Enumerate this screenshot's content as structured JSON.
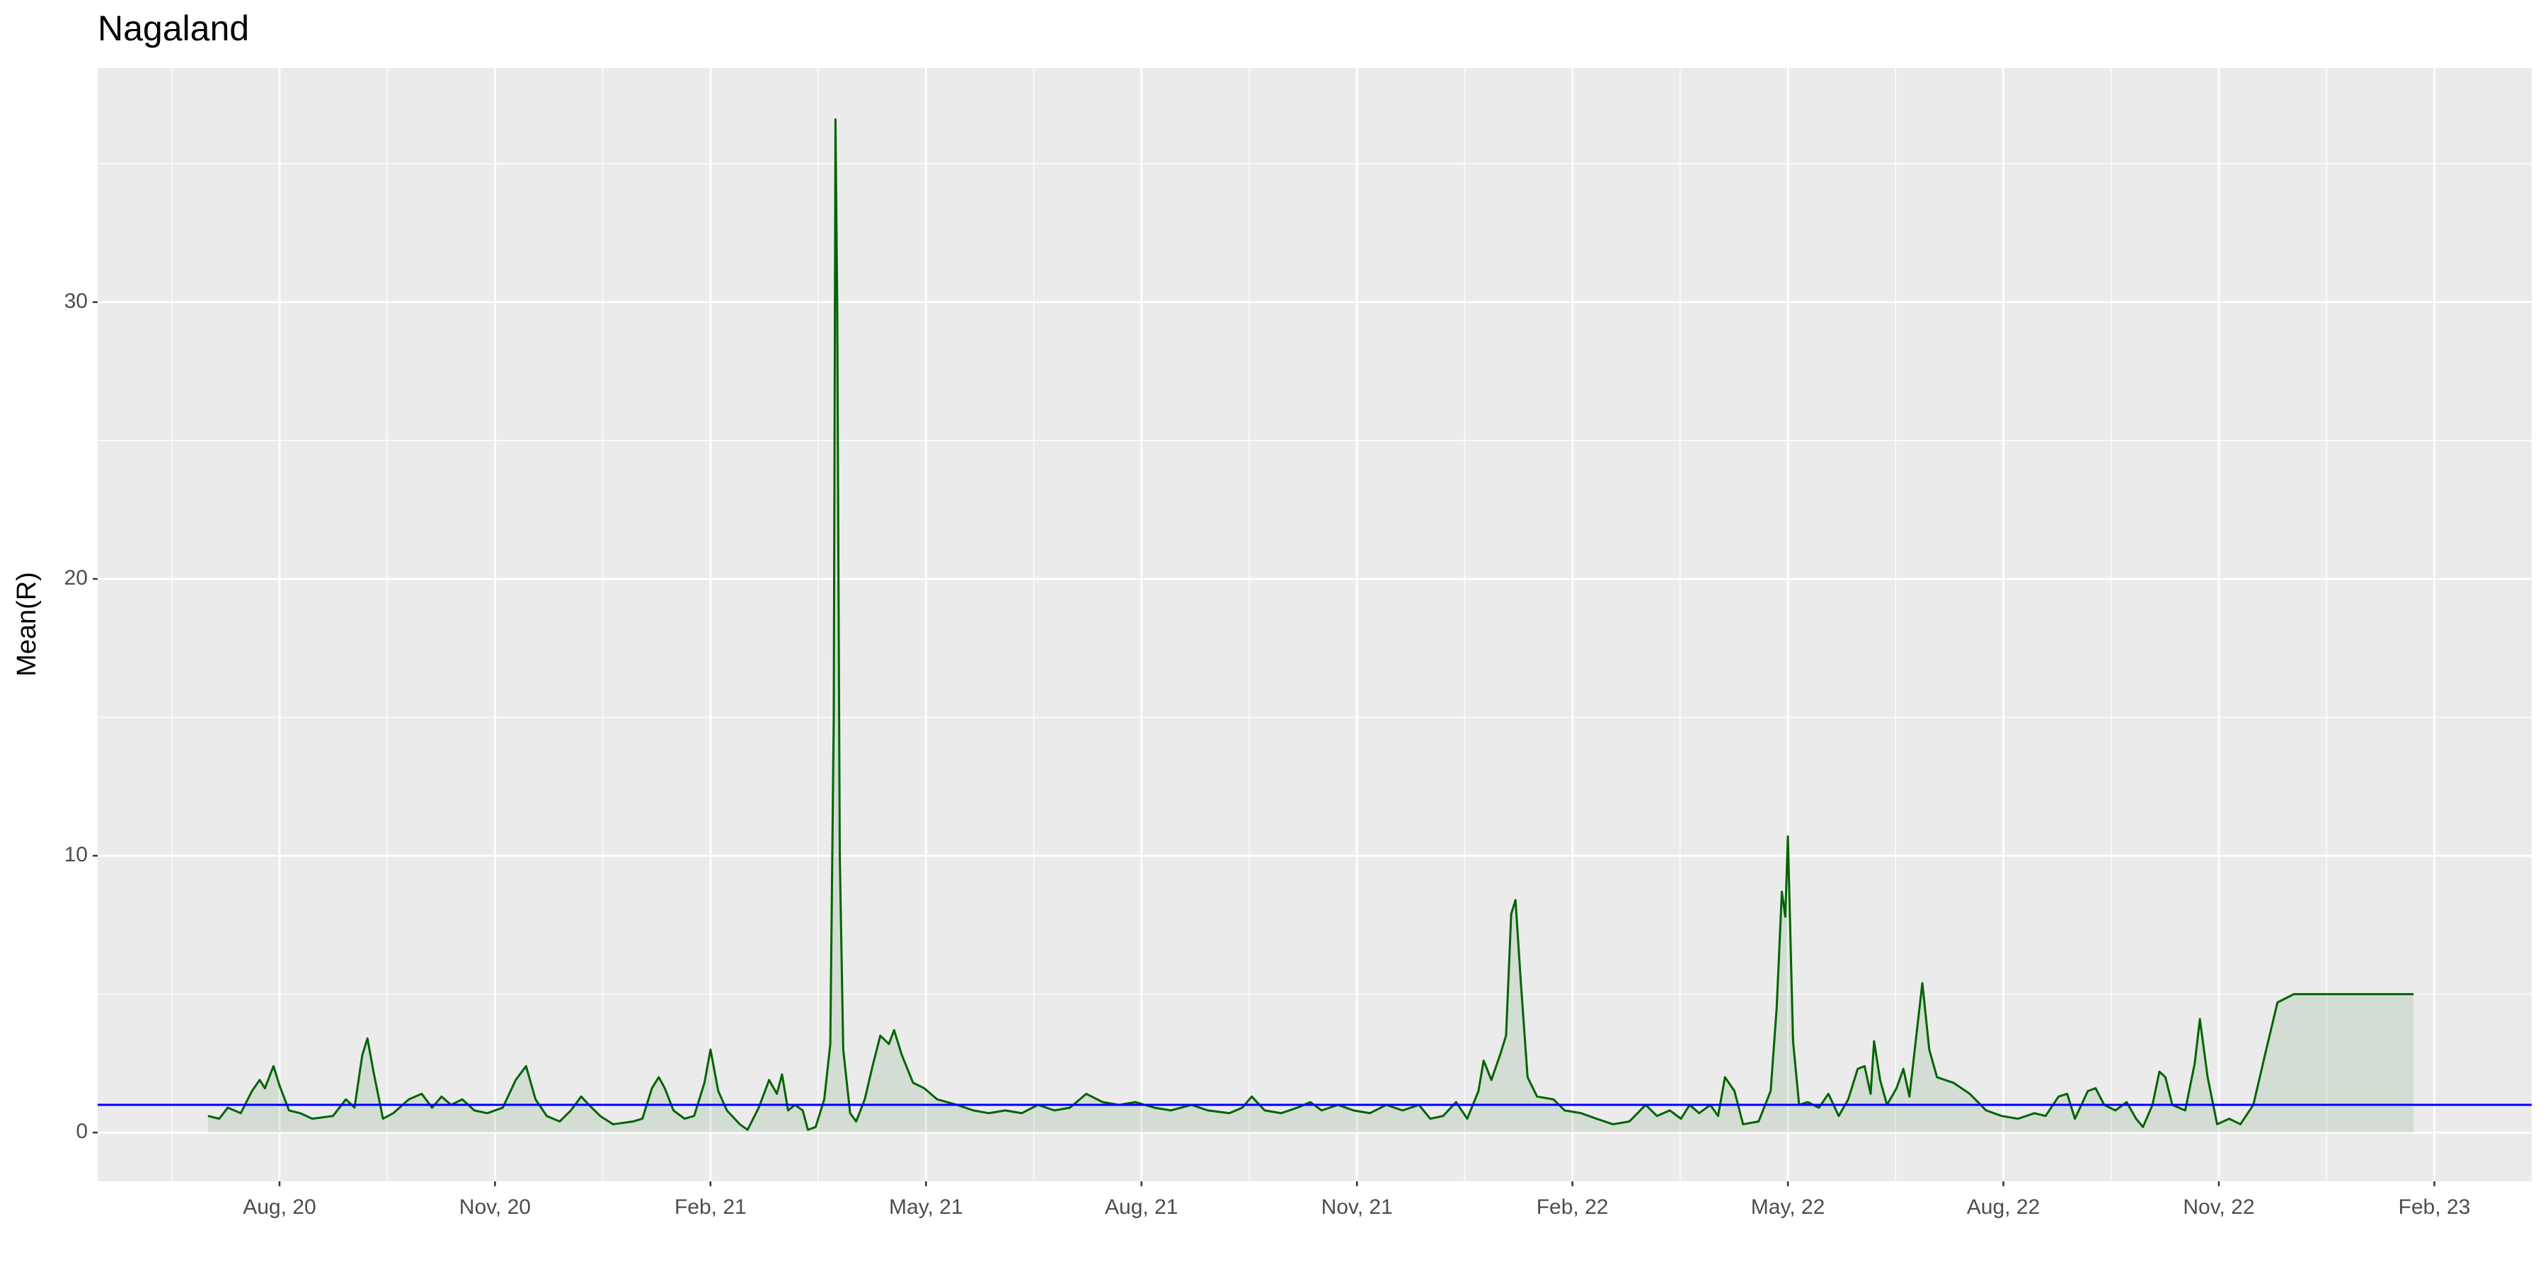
{
  "chart_data": {
    "type": "line",
    "title": "Nagaland",
    "y_label": "Mean(R)",
    "x": [
      2020.5,
      2020.513,
      2020.523,
      2020.538,
      2020.551,
      2020.56,
      2020.566,
      2020.576,
      2020.583,
      2020.594,
      2020.607,
      2020.621,
      2020.645,
      2020.66,
      2020.67,
      2020.679,
      2020.685,
      2020.692,
      2020.703,
      2020.715,
      2020.733,
      2020.748,
      2020.76,
      2020.771,
      2020.782,
      2020.795,
      2020.809,
      2020.824,
      2020.842,
      2020.857,
      2020.869,
      2020.88,
      2020.893,
      2020.908,
      2020.921,
      2020.933,
      2020.942,
      2020.955,
      2020.97,
      2020.993,
      2021.004,
      2021.015,
      2021.023,
      2021.03,
      2021.04,
      2021.053,
      2021.064,
      2021.076,
      2021.083,
      2021.092,
      2021.102,
      2021.117,
      2021.126,
      2021.139,
      2021.151,
      2021.16,
      2021.166,
      2021.173,
      2021.181,
      2021.19,
      2021.196,
      2021.205,
      2021.215,
      2021.222,
      2021.226,
      2021.228,
      2021.23,
      2021.233,
      2021.237,
      2021.245,
      2021.252,
      2021.262,
      2021.271,
      2021.28,
      2021.29,
      2021.296,
      2021.305,
      2021.318,
      2021.331,
      2021.346,
      2021.369,
      2021.388,
      2021.406,
      2021.425,
      2021.444,
      2021.463,
      2021.482,
      2021.5,
      2021.519,
      2021.538,
      2021.557,
      2021.576,
      2021.598,
      2021.617,
      2021.641,
      2021.66,
      2021.685,
      2021.7,
      2021.711,
      2021.726,
      2021.745,
      2021.764,
      2021.779,
      2021.792,
      2021.811,
      2021.829,
      2021.848,
      2021.867,
      2021.886,
      2021.905,
      2021.918,
      2021.933,
      2021.948,
      2021.961,
      2021.974,
      2021.98,
      2021.989,
      2021.999,
      2022.006,
      2022.012,
      2022.017,
      2022.023,
      2022.031,
      2022.042,
      2022.061,
      2022.074,
      2022.093,
      2022.111,
      2022.13,
      2022.149,
      2022.168,
      2022.181,
      2022.196,
      2022.209,
      2022.219,
      2022.23,
      2022.243,
      2022.252,
      2022.26,
      2022.271,
      2022.281,
      2022.299,
      2022.313,
      2022.32,
      2022.326,
      2022.33,
      2022.333,
      2022.339,
      2022.346,
      2022.356,
      2022.369,
      2022.38,
      2022.392,
      2022.403,
      2022.414,
      2022.422,
      2022.429,
      2022.433,
      2022.44,
      2022.448,
      2022.459,
      2022.467,
      2022.474,
      2022.482,
      2022.489,
      2022.497,
      2022.506,
      2022.525,
      2022.544,
      2022.563,
      2022.581,
      2022.6,
      2022.619,
      2022.632,
      2022.647,
      2022.657,
      2022.666,
      2022.681,
      2022.69,
      2022.7,
      2022.713,
      2022.726,
      2022.737,
      2022.745,
      2022.756,
      2022.764,
      2022.771,
      2022.779,
      2022.794,
      2022.805,
      2022.811,
      2022.82,
      2022.831,
      2022.845,
      2022.858,
      2022.873,
      2022.888,
      2022.901,
      2022.92,
      2023.059
    ],
    "series": [
      {
        "color": "#006400",
        "fill": "rgba(0,100,0,0.1)",
        "values": [
          0.6,
          0.5,
          0.9,
          0.7,
          1.5,
          1.9,
          1.6,
          2.4,
          1.7,
          0.8,
          0.7,
          0.5,
          0.6,
          1.2,
          0.9,
          2.8,
          3.4,
          2.2,
          0.5,
          0.7,
          1.2,
          1.4,
          0.9,
          1.3,
          1.0,
          1.2,
          0.8,
          0.7,
          0.9,
          1.9,
          2.4,
          1.2,
          0.6,
          0.4,
          0.8,
          1.3,
          1.0,
          0.6,
          0.3,
          0.4,
          0.5,
          1.6,
          2.0,
          1.6,
          0.8,
          0.5,
          0.6,
          1.8,
          3.0,
          1.5,
          0.8,
          0.3,
          0.1,
          0.9,
          1.9,
          1.4,
          2.1,
          0.8,
          1.0,
          0.8,
          0.1,
          0.2,
          1.2,
          3.2,
          15,
          36.6,
          30,
          10,
          3,
          0.7,
          0.4,
          1.2,
          2.4,
          3.5,
          3.2,
          3.7,
          2.8,
          1.8,
          1.6,
          1.2,
          1.0,
          0.8,
          0.7,
          0.8,
          0.7,
          1.0,
          0.8,
          0.9,
          1.4,
          1.1,
          1.0,
          1.1,
          0.9,
          0.8,
          1.0,
          0.8,
          0.7,
          0.9,
          1.3,
          0.8,
          0.7,
          0.9,
          1.1,
          0.8,
          1.0,
          0.8,
          0.7,
          1.0,
          0.8,
          1.0,
          0.5,
          0.6,
          1.1,
          0.5,
          1.5,
          2.6,
          1.9,
          2.8,
          3.5,
          7.9,
          8.4,
          5.5,
          2.0,
          1.3,
          1.2,
          0.8,
          0.7,
          0.5,
          0.3,
          0.4,
          1.0,
          0.6,
          0.8,
          0.5,
          1.0,
          0.7,
          1.0,
          0.6,
          2.0,
          1.5,
          0.3,
          0.4,
          1.5,
          4.5,
          8.7,
          7.8,
          10.7,
          3.3,
          1.0,
          1.1,
          0.9,
          1.4,
          0.6,
          1.2,
          2.3,
          2.4,
          1.4,
          3.3,
          1.9,
          1.0,
          1.6,
          2.3,
          1.3,
          3.5,
          5.4,
          3.0,
          2.0,
          1.8,
          1.4,
          0.8,
          0.6,
          0.5,
          0.7,
          0.6,
          1.3,
          1.4,
          0.5,
          1.5,
          1.6,
          1.0,
          0.8,
          1.1,
          0.5,
          0.2,
          1.0,
          2.2,
          2.0,
          1.0,
          0.8,
          2.5,
          4.1,
          2.0,
          0.3,
          0.5,
          0.3,
          1.0,
          3.0,
          4.7,
          5.0,
          5.0
        ]
      }
    ],
    "hline": {
      "value": 1,
      "color": "#0000ff"
    },
    "xlim": [
      2020.372,
      2023.196
    ],
    "xticks": [
      {
        "value": 2020.583,
        "label": "Aug, 20"
      },
      {
        "value": 2020.833,
        "label": "Nov, 20"
      },
      {
        "value": 2021.083,
        "label": "Feb, 21"
      },
      {
        "value": 2021.333,
        "label": "May, 21"
      },
      {
        "value": 2021.583,
        "label": "Aug, 21"
      },
      {
        "value": 2021.833,
        "label": "Nov, 21"
      },
      {
        "value": 2022.083,
        "label": "Feb, 22"
      },
      {
        "value": 2022.333,
        "label": "May, 22"
      },
      {
        "value": 2022.583,
        "label": "Aug, 22"
      },
      {
        "value": 2022.833,
        "label": "Nov, 22"
      },
      {
        "value": 2023.083,
        "label": "Feb, 23"
      }
    ],
    "x_minor_ticks": [
      2020.458,
      2020.708,
      2020.958,
      2021.208,
      2021.458,
      2021.708,
      2021.958,
      2022.208,
      2022.458,
      2022.708,
      2022.958
    ],
    "ylim": [
      -1.76,
      38.46
    ],
    "yticks": [
      0,
      10,
      20,
      30
    ],
    "y_minor_ticks": [
      5,
      15,
      25,
      35
    ],
    "grid": true
  }
}
